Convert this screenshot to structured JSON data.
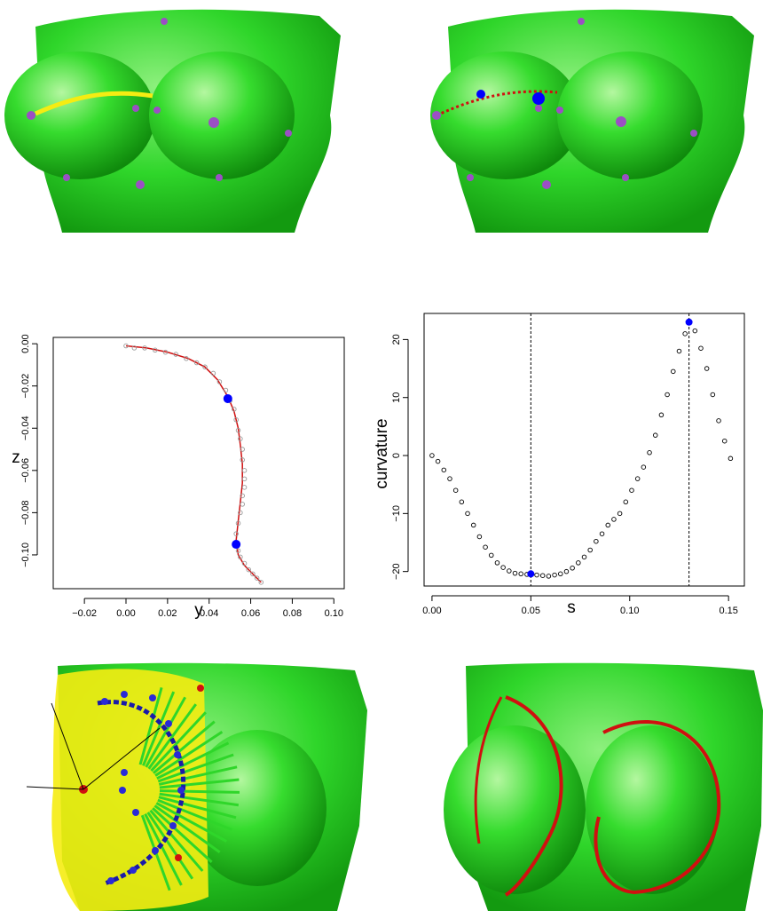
{
  "colors": {
    "mesh": "#2fd62a",
    "mesh_dark": "#139a10",
    "mesh_light": "#8ef07e",
    "landmark": "#9b4fc4",
    "blue_point": "#0000ff",
    "red_curve": "#d01010",
    "yellow_curve": "#f5ec12"
  },
  "panels": {
    "top_left": {
      "icon": "torso-mesh-icon"
    },
    "top_right": {
      "icon": "torso-mesh-icon"
    },
    "bottom_left": {
      "icon": "torso-mesh-icon"
    },
    "bottom_right": {
      "icon": "torso-mesh-icon"
    }
  },
  "chart_data": [
    {
      "type": "scatter",
      "title": "",
      "xlabel": "y",
      "ylabel": "z",
      "xlim": [
        -0.035,
        0.105
      ],
      "ylim": [
        -0.116,
        0.003
      ],
      "xticks": [
        -0.02,
        0.0,
        0.02,
        0.04,
        0.06,
        0.08,
        0.1
      ],
      "xtick_labels": [
        "−0.02",
        "0.00",
        "0.02",
        "0.04",
        "0.06",
        "0.08",
        "0.10"
      ],
      "yticks": [
        0.0,
        -0.02,
        -0.04,
        -0.06,
        -0.08,
        -0.1
      ],
      "ytick_labels": [
        "0.00",
        "−0.02",
        "−0.04",
        "−0.06",
        "−0.08",
        "−0.10"
      ],
      "grid": false,
      "points": {
        "x": [
          0.0,
          0.004,
          0.009,
          0.014,
          0.019,
          0.024,
          0.029,
          0.034,
          0.038,
          0.042,
          0.045,
          0.048,
          0.05,
          0.052,
          0.053,
          0.054,
          0.055,
          0.056,
          0.056,
          0.057,
          0.057,
          0.057,
          0.056,
          0.056,
          0.055,
          0.054,
          0.053,
          0.053,
          0.054,
          0.055,
          0.057,
          0.059,
          0.061,
          0.063,
          0.065
        ],
        "y": [
          -0.001,
          -0.002,
          -0.002,
          -0.003,
          -0.004,
          -0.005,
          -0.007,
          -0.009,
          -0.011,
          -0.014,
          -0.018,
          -0.022,
          -0.027,
          -0.031,
          -0.036,
          -0.041,
          -0.045,
          -0.05,
          -0.055,
          -0.06,
          -0.064,
          -0.068,
          -0.072,
          -0.076,
          -0.08,
          -0.085,
          -0.09,
          -0.094,
          -0.098,
          -0.101,
          -0.104,
          -0.107,
          -0.109,
          -0.111,
          -0.113
        ]
      },
      "fit_curve": {
        "x": [
          0.0,
          0.01,
          0.02,
          0.03,
          0.038,
          0.044,
          0.049,
          0.052,
          0.054,
          0.055,
          0.056,
          0.056,
          0.055,
          0.054,
          0.053,
          0.054,
          0.057,
          0.061,
          0.065
        ],
        "y": [
          -0.001,
          -0.002,
          -0.004,
          -0.007,
          -0.011,
          -0.017,
          -0.025,
          -0.032,
          -0.04,
          -0.048,
          -0.057,
          -0.066,
          -0.075,
          -0.084,
          -0.093,
          -0.1,
          -0.105,
          -0.109,
          -0.113
        ]
      },
      "highlight": {
        "x": [
          0.049,
          0.053
        ],
        "y": [
          -0.026,
          -0.095
        ]
      }
    },
    {
      "type": "scatter",
      "title": "",
      "xlabel": "s",
      "ylabel": "curvature",
      "xlim": [
        -0.004,
        0.158
      ],
      "ylim": [
        -22.5,
        24.5
      ],
      "xticks": [
        0.0,
        0.05,
        0.1,
        0.15
      ],
      "xtick_labels": [
        "0.00",
        "0.05",
        "0.10",
        "0.15"
      ],
      "yticks": [
        -20,
        -10,
        0,
        10,
        20
      ],
      "ytick_labels": [
        "−20",
        "−10",
        "0",
        "10",
        "20"
      ],
      "grid": false,
      "vlines": [
        0.05,
        0.13
      ],
      "points": {
        "x": [
          0.0,
          0.003,
          0.006,
          0.009,
          0.012,
          0.015,
          0.018,
          0.021,
          0.024,
          0.027,
          0.03,
          0.033,
          0.036,
          0.039,
          0.042,
          0.045,
          0.048,
          0.05,
          0.053,
          0.056,
          0.059,
          0.062,
          0.065,
          0.068,
          0.071,
          0.074,
          0.077,
          0.08,
          0.083,
          0.086,
          0.089,
          0.092,
          0.095,
          0.098,
          0.101,
          0.104,
          0.107,
          0.11,
          0.113,
          0.116,
          0.119,
          0.122,
          0.125,
          0.128,
          0.13,
          0.133,
          0.136,
          0.139,
          0.142,
          0.145,
          0.148,
          0.151
        ],
        "y": [
          0.0,
          -1.0,
          -2.5,
          -4.0,
          -6.0,
          -8.0,
          -10.0,
          -12.0,
          -14.0,
          -15.8,
          -17.2,
          -18.5,
          -19.3,
          -19.9,
          -20.3,
          -20.4,
          -20.5,
          -20.4,
          -20.6,
          -20.7,
          -20.8,
          -20.6,
          -20.4,
          -20.0,
          -19.4,
          -18.5,
          -17.5,
          -16.3,
          -14.8,
          -13.5,
          -12.0,
          -11.0,
          -10.0,
          -8.0,
          -6.0,
          -4.0,
          -2.0,
          0.5,
          3.5,
          7.0,
          10.5,
          14.5,
          18.0,
          21.0,
          23.0,
          21.5,
          18.5,
          15.0,
          10.5,
          6.0,
          2.5,
          -0.5
        ]
      },
      "highlight": {
        "x": [
          0.05,
          0.13
        ],
        "y": [
          -20.4,
          23.0
        ]
      }
    }
  ]
}
